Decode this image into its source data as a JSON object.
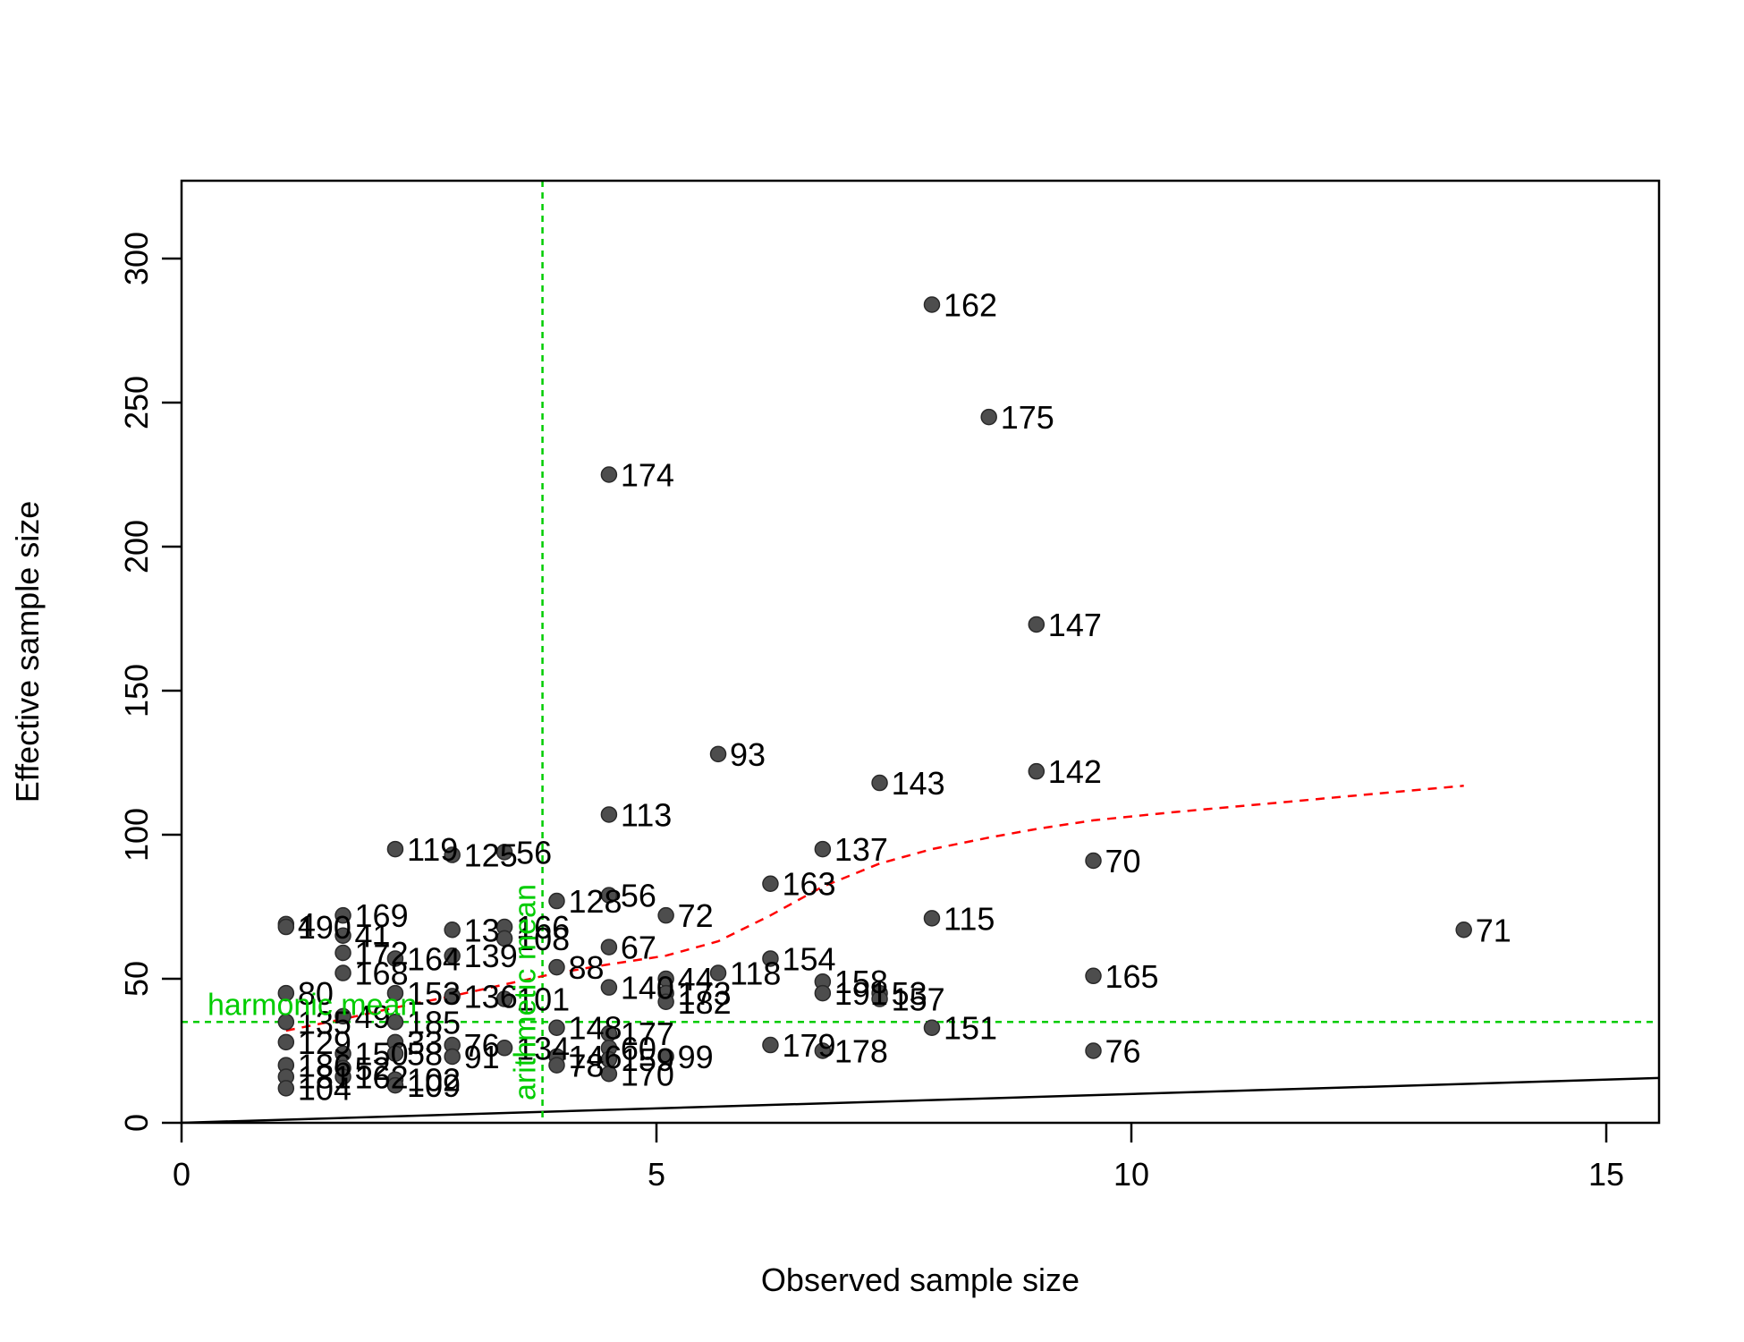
{
  "chart_data": {
    "type": "scatter",
    "title": "",
    "xlabel": "Observed sample size",
    "ylabel": "Effective sample size",
    "xlim": [
      0,
      15.6
    ],
    "ylim": [
      0,
      325
    ],
    "xticks": [
      "0",
      "5",
      "10",
      "15"
    ],
    "yticks": [
      "0",
      "50",
      "100",
      "150",
      "200",
      "250",
      "300"
    ],
    "grid": false,
    "legend": "none",
    "point_color": "#4d4d4d",
    "smooth_color": "#ff0000",
    "ref_color": "#00cc00",
    "points": [
      {
        "x": 7.9,
        "y": 284,
        "label": "162"
      },
      {
        "x": 8.5,
        "y": 245,
        "label": "175"
      },
      {
        "x": 4.5,
        "y": 225,
        "label": "174"
      },
      {
        "x": 9.0,
        "y": 173,
        "label": "147"
      },
      {
        "x": 5.65,
        "y": 128,
        "label": "93"
      },
      {
        "x": 9.0,
        "y": 122,
        "label": "142"
      },
      {
        "x": 7.35,
        "y": 118,
        "label": "143"
      },
      {
        "x": 4.5,
        "y": 107,
        "label": "113"
      },
      {
        "x": 6.75,
        "y": 95,
        "label": "137"
      },
      {
        "x": 9.6,
        "y": 91,
        "label": "70"
      },
      {
        "x": 2.25,
        "y": 95,
        "label": "119"
      },
      {
        "x": 2.85,
        "y": 93,
        "label": "125"
      },
      {
        "x": 3.4,
        "y": 94,
        "label": "56"
      },
      {
        "x": 6.2,
        "y": 83,
        "label": "163"
      },
      {
        "x": 4.5,
        "y": 79,
        "label": "56"
      },
      {
        "x": 3.95,
        "y": 77,
        "label": "128"
      },
      {
        "x": 5.1,
        "y": 72,
        "label": "72"
      },
      {
        "x": 7.9,
        "y": 71,
        "label": "115"
      },
      {
        "x": 13.5,
        "y": 67,
        "label": "71"
      },
      {
        "x": 1.1,
        "y": 69,
        "label": "4"
      },
      {
        "x": 1.1,
        "y": 68,
        "label": "190"
      },
      {
        "x": 1.7,
        "y": 72,
        "label": "169"
      },
      {
        "x": 1.7,
        "y": 65,
        "label": "41"
      },
      {
        "x": 2.85,
        "y": 67,
        "label": "13"
      },
      {
        "x": 3.4,
        "y": 68,
        "label": "166"
      },
      {
        "x": 3.4,
        "y": 64,
        "label": "108"
      },
      {
        "x": 4.5,
        "y": 61,
        "label": "67"
      },
      {
        "x": 1.7,
        "y": 59,
        "label": "172"
      },
      {
        "x": 2.25,
        "y": 57,
        "label": "164"
      },
      {
        "x": 2.85,
        "y": 58,
        "label": "139"
      },
      {
        "x": 6.2,
        "y": 57,
        "label": "154"
      },
      {
        "x": 3.95,
        "y": 54,
        "label": "88"
      },
      {
        "x": 5.65,
        "y": 52,
        "label": "118"
      },
      {
        "x": 1.7,
        "y": 52,
        "label": "168"
      },
      {
        "x": 9.6,
        "y": 51,
        "label": "165"
      },
      {
        "x": 5.1,
        "y": 50,
        "label": "44"
      },
      {
        "x": 6.75,
        "y": 49,
        "label": "158"
      },
      {
        "x": 4.5,
        "y": 47,
        "label": "140"
      },
      {
        "x": 7.35,
        "y": 45,
        "label": "53"
      },
      {
        "x": 5.1,
        "y": 45,
        "label": "173"
      },
      {
        "x": 6.75,
        "y": 45,
        "label": "191"
      },
      {
        "x": 7.35,
        "y": 43,
        "label": "157"
      },
      {
        "x": 5.1,
        "y": 42,
        "label": "182"
      },
      {
        "x": 1.1,
        "y": 45,
        "label": "80"
      },
      {
        "x": 2.25,
        "y": 45,
        "label": "153"
      },
      {
        "x": 2.85,
        "y": 44,
        "label": "136"
      },
      {
        "x": 3.4,
        "y": 43,
        "label": "101"
      },
      {
        "x": 3.95,
        "y": 33,
        "label": "148"
      },
      {
        "x": 4.5,
        "y": 31,
        "label": "177"
      },
      {
        "x": 7.9,
        "y": 33,
        "label": "151"
      },
      {
        "x": 1.1,
        "y": 35,
        "label": "135"
      },
      {
        "x": 1.7,
        "y": 37,
        "label": "49"
      },
      {
        "x": 2.25,
        "y": 35,
        "label": "185"
      },
      {
        "x": 1.1,
        "y": 28,
        "label": "129"
      },
      {
        "x": 2.25,
        "y": 28,
        "label": "33"
      },
      {
        "x": 2.85,
        "y": 27,
        "label": "76"
      },
      {
        "x": 3.4,
        "y": 26,
        "label": "134"
      },
      {
        "x": 4.5,
        "y": 26,
        "label": "60"
      },
      {
        "x": 6.2,
        "y": 27,
        "label": "179"
      },
      {
        "x": 6.75,
        "y": 25,
        "label": "178"
      },
      {
        "x": 9.6,
        "y": 25,
        "label": "76"
      },
      {
        "x": 1.7,
        "y": 24,
        "label": "150"
      },
      {
        "x": 2.25,
        "y": 24,
        "label": "58"
      },
      {
        "x": 2.85,
        "y": 23,
        "label": "91"
      },
      {
        "x": 3.95,
        "y": 23,
        "label": "146"
      },
      {
        "x": 5.1,
        "y": 23,
        "label": "99"
      },
      {
        "x": 4.5,
        "y": 22,
        "label": "159"
      },
      {
        "x": 1.1,
        "y": 20,
        "label": "186"
      },
      {
        "x": 1.7,
        "y": 19,
        "label": "52"
      },
      {
        "x": 3.95,
        "y": 20,
        "label": "78"
      },
      {
        "x": 4.5,
        "y": 17,
        "label": "170"
      },
      {
        "x": 1.1,
        "y": 16,
        "label": "181"
      },
      {
        "x": 1.7,
        "y": 16,
        "label": "162"
      },
      {
        "x": 2.25,
        "y": 15,
        "label": "102"
      },
      {
        "x": 2.25,
        "y": 13,
        "label": "109"
      },
      {
        "x": 1.1,
        "y": 12,
        "label": "104"
      }
    ],
    "smooth_curve": [
      [
        1.1,
        32
      ],
      [
        1.7,
        36
      ],
      [
        2.25,
        40
      ],
      [
        2.85,
        44
      ],
      [
        3.4,
        48
      ],
      [
        3.95,
        52
      ],
      [
        4.5,
        55
      ],
      [
        5.1,
        58
      ],
      [
        5.65,
        63
      ],
      [
        6.2,
        72
      ],
      [
        6.75,
        82
      ],
      [
        7.35,
        90
      ],
      [
        7.9,
        95
      ],
      [
        8.5,
        99
      ],
      [
        9.0,
        102
      ],
      [
        9.6,
        105
      ],
      [
        10.5,
        108
      ],
      [
        11.5,
        111
      ],
      [
        12.5,
        114
      ],
      [
        13.5,
        117
      ]
    ],
    "reference_line": {
      "slope": 1
    },
    "harmonic_mean": {
      "value": 35,
      "label": "harmonic mean"
    },
    "arithmetic_mean": {
      "value": 3.8,
      "label": "arithmetic mean"
    }
  }
}
